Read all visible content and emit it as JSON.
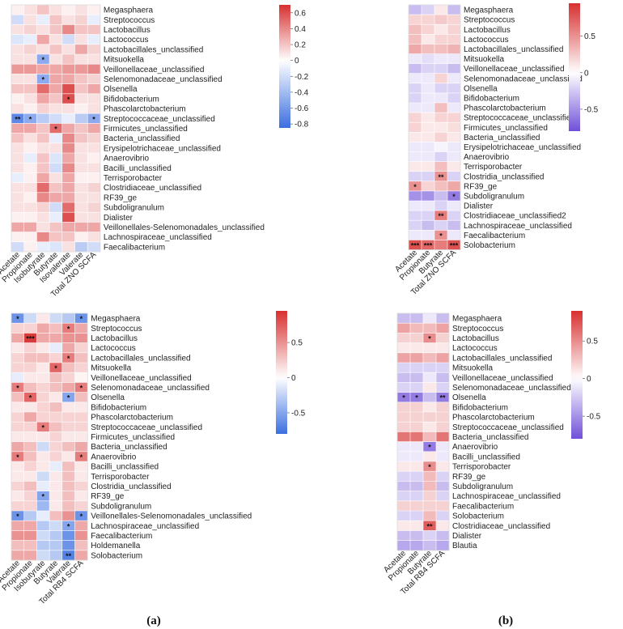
{
  "panel_labels": [
    "(a)",
    "(b)"
  ],
  "chart_data": [
    {
      "type": "heatmap",
      "columns": [
        "Acetate",
        "Propionate",
        "Isobutyrate",
        "Butyrate",
        "Isovalerate",
        "Valerate",
        "Total ZNO SCFA"
      ],
      "rows": [
        "Megasphaera",
        "Streptococcus",
        "Lactobacillus",
        "Lactococcus",
        "Lactobacillales_unclassified",
        "Mitsuokella",
        "Veillonellaceae_unclassified",
        "Selenomonadaceae_unclassified",
        "Olsenella",
        "Bifidobacterium",
        "Phascolarctobacterium",
        "Streptococcaceae_unclassified",
        "Firmicutes_unclassified",
        "Bacteria_unclassified",
        "Erysipelotrichaceae_unclassified",
        "Anaerovibrio",
        "Bacilli_unclassified",
        "Terrisporobacter",
        "Clostridiaceae_unclassified",
        "RF39_ge",
        "Subdoligranulum",
        "Dialister",
        "Veillonellales-Selenomonadales_unclassified",
        "Lachnospiraceae_unclassified",
        "Faecalibacterium"
      ],
      "values": [
        [
          0.05,
          0.1,
          0.2,
          0.1,
          0.05,
          0.1,
          0.05
        ],
        [
          -0.2,
          0.1,
          -0.1,
          0.2,
          0.1,
          0.15,
          -0.1
        ],
        [
          0.1,
          0.15,
          0.1,
          0.2,
          0.4,
          0.2,
          0.2
        ],
        [
          -0.15,
          -0.1,
          0.3,
          0.1,
          -0.2,
          0.1,
          -0.1
        ],
        [
          0.1,
          0.15,
          0.1,
          0.2,
          0.1,
          0.3,
          0.15
        ],
        [
          0.1,
          0.1,
          -0.5,
          0.1,
          0.2,
          0.1,
          0.1
        ],
        [
          0.35,
          0.35,
          0.3,
          0.3,
          0.35,
          0.35,
          0.4
        ],
        [
          0.1,
          0.1,
          -0.5,
          0.3,
          0.3,
          0.2,
          0.15
        ],
        [
          0.2,
          0.2,
          0.5,
          0.3,
          0.6,
          0.2,
          0.3
        ],
        [
          0.05,
          0.1,
          0.3,
          0.2,
          0.6,
          0.1,
          0.1
        ],
        [
          0.1,
          0.05,
          0.15,
          0.1,
          0.1,
          0.05,
          0.1
        ],
        [
          -0.7,
          -0.5,
          -0.3,
          -0.2,
          -0.1,
          -0.3,
          -0.5
        ],
        [
          0.3,
          0.3,
          0.2,
          0.5,
          0.3,
          0.2,
          0.3
        ],
        [
          0.2,
          0.1,
          0.2,
          -0.1,
          0.4,
          0.2,
          0.15
        ],
        [
          0.1,
          0.05,
          0.1,
          0.1,
          0.4,
          0.1,
          0.1
        ],
        [
          0.1,
          -0.1,
          0.2,
          -0.15,
          0.3,
          0.1,
          0.05
        ],
        [
          0.1,
          0.05,
          0.2,
          -0.2,
          0.4,
          0.1,
          0.1
        ],
        [
          -0.1,
          0.05,
          0.3,
          0.1,
          0.3,
          0.05,
          0.05
        ],
        [
          0.1,
          0.1,
          0.5,
          0.2,
          0.3,
          0.1,
          0.15
        ],
        [
          0.1,
          0.05,
          0.4,
          0.3,
          0.3,
          0.1,
          0.1
        ],
        [
          0.1,
          0.1,
          0.15,
          -0.2,
          0.5,
          0.1,
          0.15
        ],
        [
          0.05,
          0.05,
          0.1,
          -0.1,
          0.6,
          0.1,
          0.1
        ],
        [
          0.3,
          0.3,
          0.1,
          0.2,
          0.3,
          0.3,
          0.3
        ],
        [
          0.05,
          0.05,
          0.4,
          0.2,
          0.2,
          0.05,
          0.1
        ],
        [
          -0.2,
          0.05,
          -0.1,
          -0.15,
          0.1,
          -0.3,
          -0.2
        ]
      ],
      "significance": [
        {
          "row": 5,
          "col": 2,
          "mark": "*"
        },
        {
          "row": 7,
          "col": 2,
          "mark": "*"
        },
        {
          "row": 9,
          "col": 4,
          "mark": "*"
        },
        {
          "row": 11,
          "col": 0,
          "mark": "**"
        },
        {
          "row": 11,
          "col": 1,
          "mark": "*"
        },
        {
          "row": 11,
          "col": 6,
          "mark": "*"
        },
        {
          "row": 12,
          "col": 3,
          "mark": "*"
        }
      ],
      "colorbar": {
        "ticks": [
          0.6,
          0.4,
          0.2,
          0,
          -0.2,
          -0.4,
          -0.6,
          -0.8
        ],
        "tick_labels": [
          "0.6",
          "0.4",
          "0.2",
          "0",
          "-0.2",
          "-0.4",
          "-0.6",
          "-0.8"
        ],
        "min": -0.85,
        "max": 0.7,
        "low_color": "#3b6fe0",
        "mid_color": "#ffffff",
        "high_color": "#d73030"
      }
    },
    {
      "type": "heatmap",
      "columns": [
        "Acetate",
        "Propionate",
        "Butyrate",
        "Total ZNO SCFA"
      ],
      "rows": [
        "Megasphaera",
        "Streptococcus",
        "Lactobacillus",
        "Lactococcus",
        "Lactobacillales_unclassified",
        "Mitsuokella",
        "Veillonellaceae_unclassified",
        "Selenomonadaceae_unclassified",
        "Olsenella",
        "Bifidobacterium",
        "Phascolarctobacterium",
        "Streptococcaceae_unclassified",
        "Firmicutes_unclassified",
        "Bacteria_unclassified",
        "Erysipelotrichaceae_unclassified",
        "Anaerovibrio",
        "Terrisporobacter",
        "Clostridia_unclassified",
        "RF39_ge",
        "Subdoligranulum",
        "Dialister",
        "Clostridiaceae_unclassified2",
        "Lachnospiraceae_unclassified",
        "Faecalibacterium",
        "Solobacterium"
      ],
      "values": [
        [
          -0.3,
          -0.2,
          0.1,
          -0.3
        ],
        [
          0.2,
          0.2,
          0.25,
          0.2
        ],
        [
          0.3,
          0.2,
          0.1,
          0.2
        ],
        [
          0.3,
          0.1,
          0.2,
          0.2
        ],
        [
          0.4,
          0.3,
          0.3,
          0.35
        ],
        [
          -0.1,
          -0.15,
          -0.1,
          -0.1
        ],
        [
          -0.3,
          -0.2,
          -0.2,
          -0.3
        ],
        [
          -0.1,
          -0.1,
          0.2,
          -0.1
        ],
        [
          -0.2,
          -0.1,
          -0.2,
          -0.2
        ],
        [
          -0.2,
          -0.1,
          -0.1,
          -0.2
        ],
        [
          -0.1,
          -0.1,
          0.3,
          -0.1
        ],
        [
          0.2,
          0.1,
          0.2,
          0.2
        ],
        [
          0.2,
          0.1,
          0.1,
          0.15
        ],
        [
          0.1,
          0.1,
          0.2,
          0.1
        ],
        [
          -0.1,
          -0.1,
          -0.05,
          -0.1
        ],
        [
          -0.1,
          -0.1,
          -0.2,
          -0.1
        ],
        [
          0.1,
          0.1,
          0.3,
          0.1
        ],
        [
          -0.2,
          -0.2,
          0.5,
          -0.2
        ],
        [
          0.5,
          0.2,
          0.3,
          0.4
        ],
        [
          -0.5,
          -0.5,
          -0.3,
          -0.6
        ],
        [
          -0.1,
          -0.1,
          -0.2,
          -0.1
        ],
        [
          -0.2,
          -0.2,
          0.6,
          -0.2
        ],
        [
          -0.2,
          -0.3,
          -0.2,
          -0.3
        ],
        [
          -0.1,
          -0.1,
          0.5,
          -0.1
        ],
        [
          0.8,
          0.7,
          0.6,
          0.8
        ]
      ],
      "significance": [
        {
          "row": 17,
          "col": 2,
          "mark": "**"
        },
        {
          "row": 18,
          "col": 0,
          "mark": "*"
        },
        {
          "row": 19,
          "col": 3,
          "mark": "*"
        },
        {
          "row": 21,
          "col": 2,
          "mark": "**"
        },
        {
          "row": 23,
          "col": 2,
          "mark": "*"
        },
        {
          "row": 24,
          "col": 0,
          "mark": "***"
        },
        {
          "row": 24,
          "col": 1,
          "mark": "***"
        },
        {
          "row": 24,
          "col": 3,
          "mark": "***"
        }
      ],
      "colorbar": {
        "ticks": [
          0.5,
          0,
          -0.5
        ],
        "tick_labels": [
          "0.5",
          "0",
          "-0.5"
        ],
        "min": -0.8,
        "max": 0.95,
        "low_color": "#6f4fd8",
        "mid_color": "#ffffff",
        "high_color": "#d73030"
      }
    },
    {
      "type": "heatmap",
      "columns": [
        "Acetate",
        "Propionate",
        "Isobutyrate",
        "Butyrate",
        "Valerate",
        "Total RB4 SCFA"
      ],
      "rows": [
        "Megasphaera",
        "Streptococcus",
        "Lactobacillus",
        "Lactococcus",
        "Lactobacillales_unclassified",
        "Mitsuokella",
        "Veillonellaceae_unclassified",
        "Selenomonadaceae_unclassified",
        "Olsenella",
        "Bifidobacterium",
        "Phascolarctobacterium",
        "Streptococcaceae_unclassified",
        "Firmicutes_unclassified",
        "Bacteria_unclassified",
        "Anaerovibrio",
        "Bacilli_unclassified",
        "Terrisporobacter",
        "Clostridia_unclassified",
        "RF39_ge",
        "Subdoligranulum",
        "Veillonellales-Selenomonadales_unclassified",
        "Lachnospiraceae_unclassified",
        "Faecalibacterium",
        "Holdemanella",
        "Solobacterium"
      ],
      "values": [
        [
          -0.6,
          -0.2,
          0.1,
          -0.2,
          -0.3,
          -0.6
        ],
        [
          0.2,
          0.2,
          0.4,
          0.3,
          0.6,
          0.4
        ],
        [
          0.4,
          0.9,
          0.4,
          0.4,
          0.5,
          0.5
        ],
        [
          0.1,
          0.2,
          0.1,
          -0.1,
          0.4,
          0.2
        ],
        [
          0.2,
          0.3,
          0.3,
          0.2,
          0.6,
          0.3
        ],
        [
          0.2,
          0.2,
          0.1,
          0.7,
          0.3,
          0.2
        ],
        [
          -0.1,
          0.1,
          0.1,
          0.3,
          0.2,
          0.05
        ],
        [
          0.6,
          0.3,
          0.2,
          0.3,
          0.4,
          0.6
        ],
        [
          0.3,
          0.7,
          0.2,
          0.1,
          -0.5,
          0.3
        ],
        [
          0.1,
          0.1,
          0.2,
          0.3,
          0.1,
          0.1
        ],
        [
          0.2,
          0.4,
          0.2,
          0.2,
          0.2,
          0.2
        ],
        [
          0.2,
          0.2,
          0.6,
          0.3,
          0.2,
          0.2
        ],
        [
          0.1,
          0.1,
          0.1,
          0.2,
          0.1,
          0.1
        ],
        [
          0.4,
          0.3,
          -0.2,
          0.2,
          0.3,
          0.4
        ],
        [
          0.6,
          0.3,
          0.1,
          0.2,
          0.1,
          0.6
        ],
        [
          0.1,
          0.2,
          0.1,
          -0.1,
          0.3,
          0.1
        ],
        [
          0.1,
          0.1,
          -0.2,
          0.1,
          0.3,
          0.1
        ],
        [
          0.2,
          0.3,
          -0.1,
          0.1,
          0.3,
          0.2
        ],
        [
          0.1,
          0.2,
          -0.5,
          0.1,
          0.3,
          0.1
        ],
        [
          0.2,
          0.2,
          -0.4,
          0.1,
          0.3,
          0.2
        ],
        [
          -0.6,
          -0.3,
          -0.1,
          0.3,
          0.5,
          -0.6
        ],
        [
          0.4,
          0.4,
          -0.3,
          -0.2,
          -0.5,
          0.4
        ],
        [
          0.5,
          0.5,
          -0.2,
          -0.3,
          -0.6,
          0.5
        ],
        [
          0.3,
          0.3,
          -0.3,
          -0.3,
          -0.6,
          0.3
        ],
        [
          0.4,
          0.4,
          -0.2,
          -0.3,
          -0.7,
          0.4
        ]
      ],
      "significance": [
        {
          "row": 0,
          "col": 0,
          "mark": "*"
        },
        {
          "row": 0,
          "col": 5,
          "mark": "*"
        },
        {
          "row": 1,
          "col": 4,
          "mark": "*"
        },
        {
          "row": 2,
          "col": 1,
          "mark": "***"
        },
        {
          "row": 4,
          "col": 4,
          "mark": "*"
        },
        {
          "row": 5,
          "col": 3,
          "mark": "*"
        },
        {
          "row": 7,
          "col": 0,
          "mark": "*"
        },
        {
          "row": 7,
          "col": 5,
          "mark": "*"
        },
        {
          "row": 8,
          "col": 1,
          "mark": "*"
        },
        {
          "row": 8,
          "col": 4,
          "mark": "*"
        },
        {
          "row": 11,
          "col": 2,
          "mark": "*"
        },
        {
          "row": 14,
          "col": 0,
          "mark": "*"
        },
        {
          "row": 14,
          "col": 5,
          "mark": "*"
        },
        {
          "row": 18,
          "col": 2,
          "mark": "*"
        },
        {
          "row": 20,
          "col": 0,
          "mark": "*"
        },
        {
          "row": 20,
          "col": 5,
          "mark": "*"
        },
        {
          "row": 21,
          "col": 4,
          "mark": "*"
        },
        {
          "row": 24,
          "col": 4,
          "mark": "**"
        }
      ],
      "colorbar": {
        "ticks": [
          0.5,
          0,
          -0.5
        ],
        "tick_labels": [
          "0.5",
          "0",
          "-0.5"
        ],
        "min": -0.8,
        "max": 0.95,
        "low_color": "#3b6fe0",
        "mid_color": "#ffffff",
        "high_color": "#d73030"
      }
    },
    {
      "type": "heatmap",
      "columns": [
        "Acetate",
        "Propionate",
        "Butyrate",
        "Total RB4 SCFA"
      ],
      "rows": [
        "Megasphaera",
        "Streptococcus",
        "Lactobacillus",
        "Lactococcus",
        "Lactobacillales_unclassified",
        "Mitsuokella",
        "Veillonellaceae_unclassified",
        "Selenomonadaceae_unclassified",
        "Olsenella",
        "Bifidobacterium",
        "Phascolarctobacterium",
        "Streptococcaceae_unclassified",
        "Bacteria_unclassified",
        "Anaerovibrio",
        "Bacilli_unclassified",
        "Terrisporobacter",
        "RF39_ge",
        "Subdoligranulum",
        "Lachnospiraceae_unclassified",
        "Faecalibacterium",
        "Solobacterium",
        "Clostridiaceae_unclassified",
        "Dialister",
        "Blautia"
      ],
      "values": [
        [
          -0.3,
          -0.3,
          -0.1,
          -0.3
        ],
        [
          0.4,
          0.3,
          0.3,
          0.4
        ],
        [
          0.2,
          0.2,
          0.5,
          0.2
        ],
        [
          0.1,
          0.1,
          0.1,
          0.1
        ],
        [
          0.4,
          0.4,
          0.3,
          0.4
        ],
        [
          -0.2,
          -0.2,
          -0.2,
          -0.2
        ],
        [
          -0.3,
          -0.3,
          -0.1,
          -0.3
        ],
        [
          -0.2,
          -0.2,
          0.1,
          -0.2
        ],
        [
          -0.6,
          -0.6,
          -0.3,
          -0.6
        ],
        [
          0.2,
          0.2,
          0.1,
          0.2
        ],
        [
          0.2,
          0.2,
          0.2,
          0.2
        ],
        [
          0.2,
          0.2,
          0.1,
          0.2
        ],
        [
          0.6,
          0.6,
          0.3,
          0.6
        ],
        [
          -0.1,
          -0.1,
          -0.6,
          -0.1
        ],
        [
          -0.1,
          -0.1,
          0.1,
          -0.1
        ],
        [
          0.1,
          0.1,
          0.5,
          0.1
        ],
        [
          -0.2,
          -0.2,
          0.3,
          -0.2
        ],
        [
          -0.3,
          -0.3,
          0.3,
          -0.3
        ],
        [
          -0.2,
          -0.2,
          0.2,
          -0.2
        ],
        [
          0.2,
          0.2,
          0.2,
          0.2
        ],
        [
          -0.2,
          -0.2,
          0.3,
          -0.2
        ],
        [
          0.1,
          0.1,
          0.7,
          0.1
        ],
        [
          -0.3,
          -0.3,
          -0.2,
          -0.3
        ],
        [
          -0.4,
          -0.4,
          -0.3,
          -0.4
        ]
      ],
      "significance": [
        {
          "row": 2,
          "col": 2,
          "mark": "*"
        },
        {
          "row": 8,
          "col": 0,
          "mark": "*"
        },
        {
          "row": 8,
          "col": 1,
          "mark": "*"
        },
        {
          "row": 8,
          "col": 3,
          "mark": "**"
        },
        {
          "row": 13,
          "col": 2,
          "mark": "*"
        },
        {
          "row": 15,
          "col": 2,
          "mark": "*"
        },
        {
          "row": 21,
          "col": 2,
          "mark": "**"
        }
      ],
      "colorbar": {
        "ticks": [
          0.5,
          0,
          -0.5
        ],
        "tick_labels": [
          "0.5",
          "0",
          "-0.5"
        ],
        "min": -0.8,
        "max": 0.9,
        "low_color": "#6f4fd8",
        "mid_color": "#ffffff",
        "high_color": "#d73030"
      }
    }
  ]
}
